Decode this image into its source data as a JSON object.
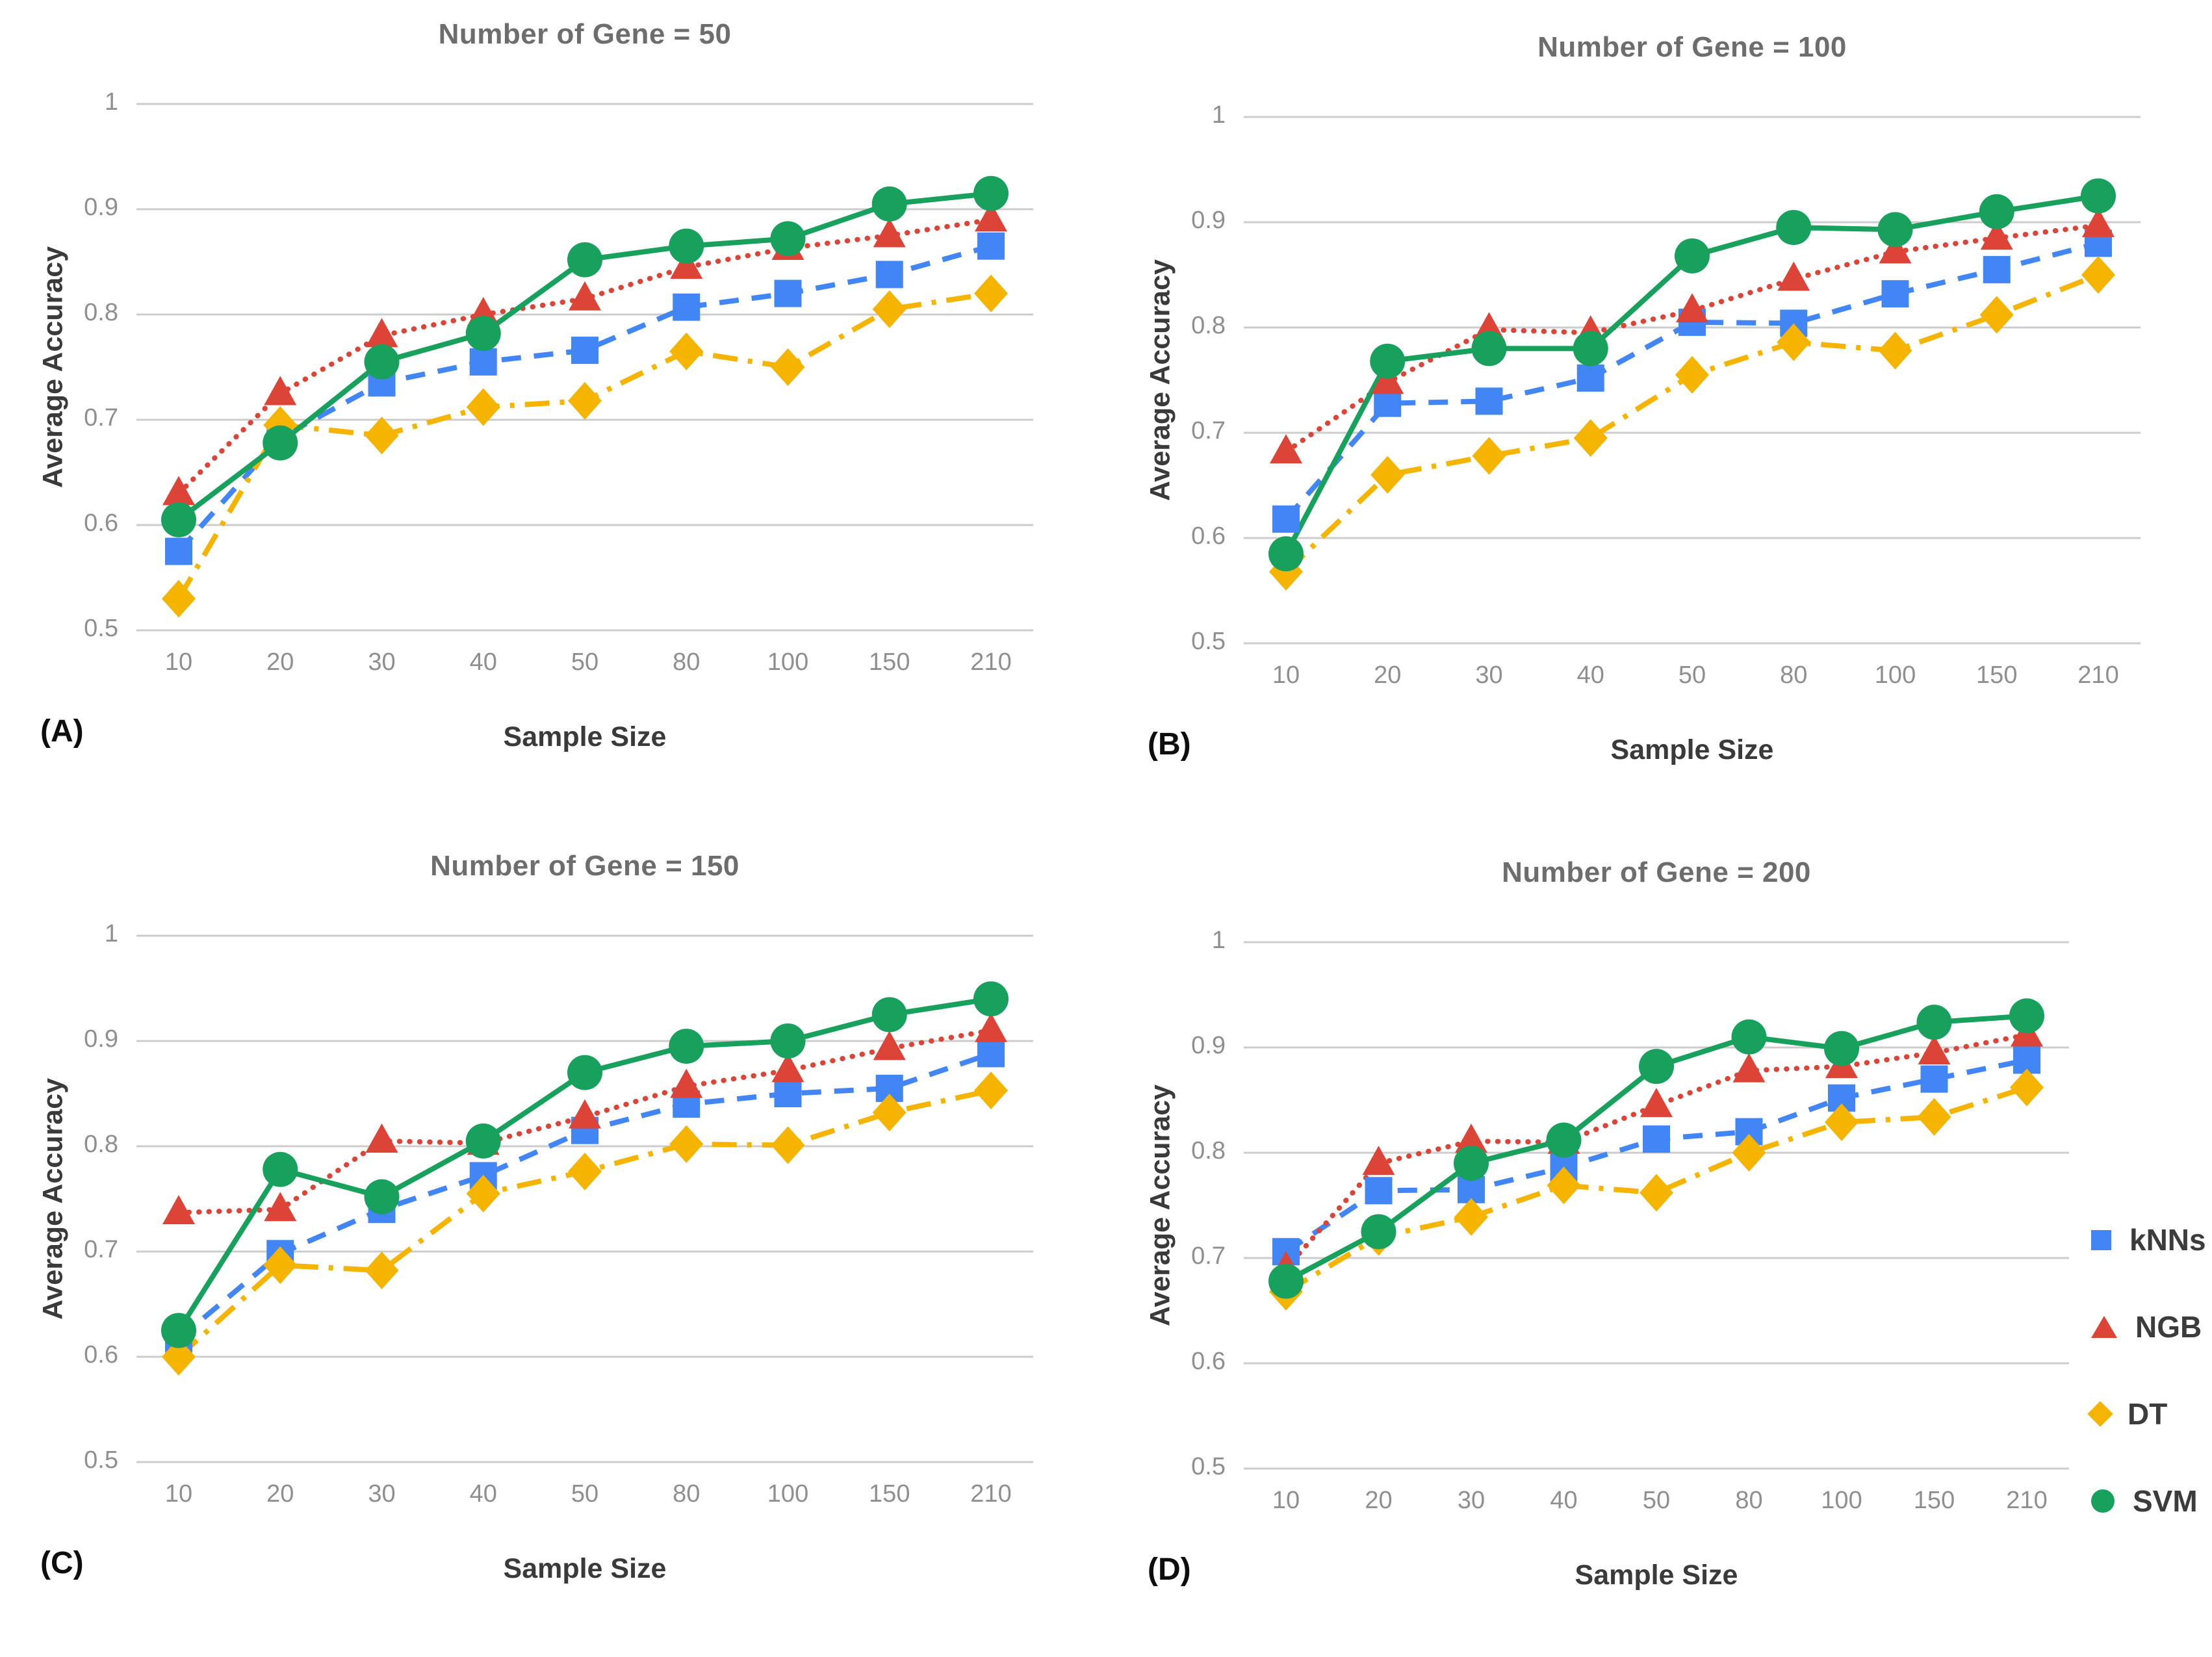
{
  "figure": {
    "background": "#ffffff"
  },
  "legend": {
    "position": "right-of-panel-D",
    "items": [
      {
        "label": "kNNs",
        "marker": "square",
        "color": "#4285F4"
      },
      {
        "label": "NGB",
        "marker": "triangle",
        "color": "#DB4437"
      },
      {
        "label": "DT",
        "marker": "diamond",
        "color": "#F4B400"
      },
      {
        "label": "SVM",
        "marker": "circle",
        "color": "#18A05D"
      }
    ]
  },
  "chart_data": [
    {
      "type": "line",
      "title": "Number of Gene = 50",
      "panel_label": "(A)",
      "xlabel": "Sample Size",
      "ylabel": "Average Accuracy",
      "categories": [
        "10",
        "20",
        "30",
        "40",
        "50",
        "80",
        "100",
        "150",
        "210"
      ],
      "ylim": [
        0.5,
        1
      ],
      "yticks": [
        "1",
        "0.9",
        "0.8",
        "0.7",
        "0.6",
        "0.5"
      ],
      "grid": "horizontal",
      "legend_shown": false,
      "series": [
        {
          "name": "kNNs",
          "color": "#4285F4",
          "line": "dashed",
          "marker": "square",
          "values": [
            0.575,
            0.683,
            0.735,
            0.755,
            0.766,
            0.807,
            0.82,
            0.838,
            0.865
          ]
        },
        {
          "name": "NGB",
          "color": "#DB4437",
          "line": "dotted",
          "marker": "triangle",
          "values": [
            0.63,
            0.725,
            0.78,
            0.8,
            0.815,
            0.845,
            0.863,
            0.875,
            0.89
          ]
        },
        {
          "name": "DT",
          "color": "#F4B400",
          "line": "dashdot",
          "marker": "diamond",
          "values": [
            0.53,
            0.695,
            0.685,
            0.712,
            0.718,
            0.765,
            0.75,
            0.805,
            0.82
          ]
        },
        {
          "name": "SVM",
          "color": "#18A05D",
          "line": "solid",
          "marker": "circle",
          "values": [
            0.605,
            0.678,
            0.755,
            0.782,
            0.852,
            0.865,
            0.872,
            0.905,
            0.915
          ]
        }
      ]
    },
    {
      "type": "line",
      "title": "Number of Gene = 100",
      "panel_label": "(B)",
      "xlabel": "Sample Size",
      "ylabel": "Average Accuracy",
      "categories": [
        "10",
        "20",
        "30",
        "40",
        "50",
        "80",
        "100",
        "150",
        "210"
      ],
      "ylim": [
        0.5,
        1
      ],
      "yticks": [
        "1",
        "0.9",
        "0.8",
        "0.7",
        "0.6",
        "0.5"
      ],
      "grid": "horizontal",
      "legend_shown": false,
      "series": [
        {
          "name": "kNNs",
          "color": "#4285F4",
          "line": "dashed",
          "marker": "square",
          "values": [
            0.618,
            0.728,
            0.73,
            0.752,
            0.805,
            0.804,
            0.832,
            0.855,
            0.88
          ]
        },
        {
          "name": "NGB",
          "color": "#DB4437",
          "line": "dotted",
          "marker": "triangle",
          "values": [
            0.682,
            0.748,
            0.798,
            0.795,
            0.816,
            0.846,
            0.872,
            0.885,
            0.897
          ]
        },
        {
          "name": "DT",
          "color": "#F4B400",
          "line": "dashdot",
          "marker": "diamond",
          "values": [
            0.568,
            0.66,
            0.678,
            0.695,
            0.755,
            0.786,
            0.778,
            0.812,
            0.85
          ]
        },
        {
          "name": "SVM",
          "color": "#18A05D",
          "line": "solid",
          "marker": "circle",
          "values": [
            0.585,
            0.768,
            0.78,
            0.78,
            0.868,
            0.895,
            0.893,
            0.91,
            0.925
          ]
        }
      ]
    },
    {
      "type": "line",
      "title": "Number of Gene = 150",
      "panel_label": "(C)",
      "xlabel": "Sample Size",
      "ylabel": "Average Accuracy",
      "categories": [
        "10",
        "20",
        "30",
        "40",
        "50",
        "80",
        "100",
        "150",
        "210"
      ],
      "ylim": [
        0.5,
        1
      ],
      "yticks": [
        "1",
        "0.9",
        "0.8",
        "0.7",
        "0.6",
        "0.5"
      ],
      "grid": "horizontal",
      "legend_shown": false,
      "series": [
        {
          "name": "kNNs",
          "color": "#4285F4",
          "line": "dashed",
          "marker": "square",
          "values": [
            0.617,
            0.698,
            0.74,
            0.772,
            0.815,
            0.84,
            0.85,
            0.855,
            0.888
          ]
        },
        {
          "name": "NGB",
          "color": "#DB4437",
          "line": "dotted",
          "marker": "triangle",
          "values": [
            0.737,
            0.74,
            0.805,
            0.803,
            0.828,
            0.857,
            0.872,
            0.893,
            0.91
          ]
        },
        {
          "name": "DT",
          "color": "#F4B400",
          "line": "dashdot",
          "marker": "diamond",
          "values": [
            0.6,
            0.687,
            0.682,
            0.755,
            0.776,
            0.802,
            0.801,
            0.832,
            0.853
          ]
        },
        {
          "name": "SVM",
          "color": "#18A05D",
          "line": "solid",
          "marker": "circle",
          "values": [
            0.625,
            0.778,
            0.752,
            0.805,
            0.87,
            0.895,
            0.9,
            0.925,
            0.94
          ]
        }
      ]
    },
    {
      "type": "line",
      "title": "Number of Gene = 200",
      "panel_label": "(D)",
      "xlabel": "Sample Size",
      "ylabel": "Average Accuracy",
      "categories": [
        "10",
        "20",
        "30",
        "40",
        "50",
        "80",
        "100",
        "150",
        "210"
      ],
      "ylim": [
        0.5,
        1
      ],
      "yticks": [
        "1",
        "0.9",
        "0.8",
        "0.7",
        "0.6",
        "0.5"
      ],
      "grid": "horizontal",
      "legend_shown": true,
      "series": [
        {
          "name": "kNNs",
          "color": "#4285F4",
          "line": "dashed",
          "marker": "square",
          "values": [
            0.706,
            0.764,
            0.765,
            0.786,
            0.813,
            0.82,
            0.852,
            0.87,
            0.888
          ]
        },
        {
          "name": "NGB",
          "color": "#DB4437",
          "line": "dotted",
          "marker": "triangle",
          "values": [
            0.69,
            0.79,
            0.811,
            0.81,
            0.845,
            0.878,
            0.882,
            0.895,
            0.912
          ]
        },
        {
          "name": "DT",
          "color": "#F4B400",
          "line": "dashdot",
          "marker": "diamond",
          "values": [
            0.668,
            0.72,
            0.739,
            0.769,
            0.762,
            0.8,
            0.829,
            0.834,
            0.862
          ]
        },
        {
          "name": "SVM",
          "color": "#18A05D",
          "line": "solid",
          "marker": "circle",
          "values": [
            0.678,
            0.725,
            0.79,
            0.812,
            0.882,
            0.91,
            0.899,
            0.924,
            0.93
          ]
        }
      ]
    }
  ]
}
